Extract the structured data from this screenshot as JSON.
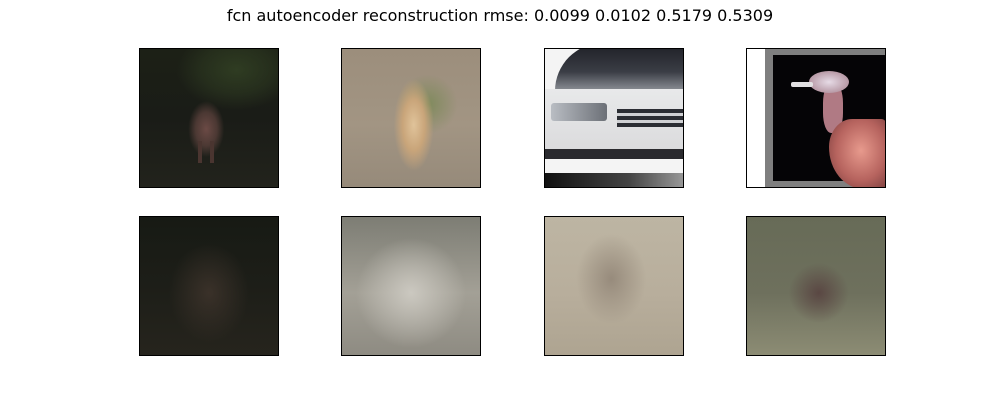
{
  "figure": {
    "title": "fcn autoencoder reconstruction rmse: 0.0099 0.0102 0.5179 0.5309"
  },
  "rows": [
    {
      "role": "original",
      "panels": [
        {
          "subject": "deer"
        },
        {
          "subject": "animal-on-ground"
        },
        {
          "subject": "car"
        },
        {
          "subject": "bird"
        }
      ]
    },
    {
      "role": "reconstruction",
      "panels": [
        {
          "subject": "blurred-deer"
        },
        {
          "subject": "blurred-animal"
        },
        {
          "subject": "blurred-car"
        },
        {
          "subject": "blurred-bird"
        }
      ]
    }
  ]
}
